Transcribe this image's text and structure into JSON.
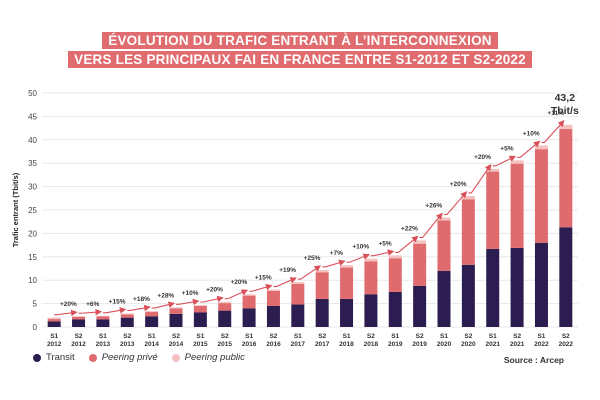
{
  "title": {
    "line1": "ÉVOLUTION DU TRAFIC ENTRANT À L’INTERCONNEXION",
    "line2": "VERS LES PRINCIPAUX FAI EN FRANCE ENTRE S1-2012 ET S2-2022"
  },
  "legend": {
    "transit": "Transit",
    "peering_prive": "Peering privé",
    "peering_public": "Peering public"
  },
  "source": "Source : Arcep",
  "colors": {
    "transit": "#2b1d4f",
    "peering_prive": "#df6b6e",
    "peering_public": "#f3c1c0",
    "arrow": "#d9505a",
    "grid": "#e8e8e8"
  },
  "chart_data": {
    "type": "bar",
    "stacked": true,
    "ylabel": "Trafic entrant (Tbit/s)",
    "ylim": [
      0,
      50
    ],
    "yticks": [
      "0",
      "5",
      "10",
      "15",
      "20",
      "25",
      "30",
      "35",
      "40",
      "45",
      "50"
    ],
    "categories": [
      [
        "S1",
        "2012"
      ],
      [
        "S2",
        "2012"
      ],
      [
        "S1",
        "2013"
      ],
      [
        "S2",
        "2013"
      ],
      [
        "S1",
        "2014"
      ],
      [
        "S2",
        "2014"
      ],
      [
        "S1",
        "2015"
      ],
      [
        "S2",
        "2015"
      ],
      [
        "S1",
        "2016"
      ],
      [
        "S2",
        "2016"
      ],
      [
        "S1",
        "2017"
      ],
      [
        "S2",
        "2017"
      ],
      [
        "S1",
        "2018"
      ],
      [
        "S2",
        "2018"
      ],
      [
        "S1",
        "2019"
      ],
      [
        "S2",
        "2019"
      ],
      [
        "S1",
        "2020"
      ],
      [
        "S2",
        "2020"
      ],
      [
        "S1",
        "2021"
      ],
      [
        "S2",
        "2021"
      ],
      [
        "S1",
        "2022"
      ],
      [
        "S2",
        "2022"
      ]
    ],
    "series": [
      {
        "name": "Transit",
        "values": [
          1.2,
          1.6,
          1.6,
          2.0,
          2.3,
          2.8,
          3.1,
          3.5,
          4.0,
          4.5,
          4.8,
          6.0,
          6.0,
          7.0,
          7.5,
          8.8,
          12.0,
          13.3,
          16.7,
          16.9,
          18.0,
          21.3
        ]
      },
      {
        "name": "Peering privé",
        "values": [
          0.5,
          0.6,
          0.7,
          0.7,
          0.9,
          1.2,
          1.4,
          1.6,
          2.7,
          3.2,
          4.4,
          5.7,
          6.7,
          7.0,
          7.2,
          9.0,
          10.8,
          14.0,
          16.5,
          18.0,
          20.0,
          21.0
        ]
      },
      {
        "name": "Peering public",
        "values": [
          0.3,
          0.1,
          0.1,
          0.2,
          0.2,
          0.2,
          0.2,
          0.3,
          0.3,
          0.3,
          0.4,
          0.5,
          0.5,
          0.6,
          0.6,
          0.7,
          0.6,
          0.7,
          0.6,
          0.7,
          0.8,
          0.9
        ]
      }
    ],
    "growth_labels": [
      "+20%",
      "+6%",
      "+15%",
      "+18%",
      "+28%",
      "+10%",
      "+20%",
      "+20%",
      "+15%",
      "+19%",
      "+25%",
      "+7%",
      "+10%",
      "+5%",
      "+22%",
      "+26%",
      "+20%",
      "+20%",
      "+5%",
      "+10%",
      "+11%"
    ],
    "last_value_label": [
      "43,2",
      "Tbit/s"
    ]
  }
}
